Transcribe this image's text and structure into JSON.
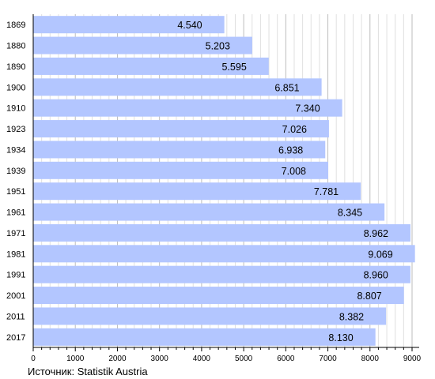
{
  "chart_data": {
    "type": "bar",
    "orientation": "horizontal",
    "categories": [
      "1869",
      "1880",
      "1890",
      "1900",
      "1910",
      "1923",
      "1934",
      "1939",
      "1951",
      "1961",
      "1971",
      "1981",
      "1991",
      "2001",
      "2011",
      "2017"
    ],
    "values": [
      4540,
      5203,
      5595,
      6851,
      7340,
      7026,
      6938,
      7008,
      7781,
      8345,
      8962,
      9069,
      8960,
      8807,
      8382,
      8130
    ],
    "value_labels": [
      "4.540",
      "5.203",
      "5.595",
      "6.851",
      "7.340",
      "7.026",
      "6.938",
      "7.008",
      "7.781",
      "8.345",
      "8.962",
      "9.069",
      "8.960",
      "8.807",
      "8.382",
      "8.130"
    ],
    "title": "",
    "xlabel": "",
    "ylabel": "",
    "xlim": [
      0,
      9000
    ],
    "ticks": [
      0,
      1000,
      2000,
      3000,
      4000,
      5000,
      6000,
      7000,
      8000,
      9000
    ],
    "grid": true,
    "bar_color": "#b3c6ff",
    "grid_color": "#c8c8c8"
  },
  "source": "Источник: Statistik Austria"
}
